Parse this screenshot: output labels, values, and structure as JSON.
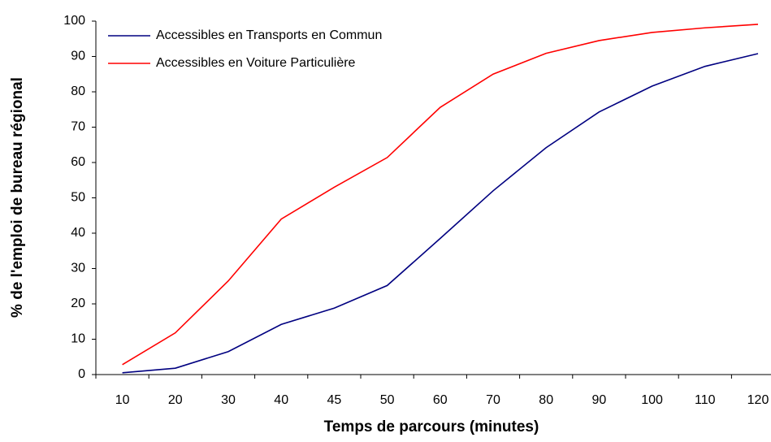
{
  "chart_data": {
    "type": "line",
    "x_label": "Temps de parcours (minutes)",
    "y_label": "% de l'emploi de bureau régional",
    "categories": [
      "10",
      "20",
      "30",
      "40",
      "45",
      "50",
      "60",
      "70",
      "80",
      "90",
      "100",
      "110",
      "120"
    ],
    "series": [
      {
        "name": "Accessibles en Transports en Commun",
        "color": "#000080",
        "values": [
          0.5,
          1.8,
          6.5,
          14.2,
          18.8,
          25.2,
          38.5,
          52,
          64.2,
          74.3,
          81.6,
          87.2,
          90.8
        ]
      },
      {
        "name": "Accessibles en Voiture Particulière",
        "color": "#ff0000",
        "values": [
          2.8,
          11.8,
          26.5,
          44,
          53,
          61.4,
          75.6,
          85,
          90.9,
          94.5,
          96.8,
          98.1,
          99.1
        ]
      }
    ],
    "ylim": [
      0,
      100
    ],
    "yticks": [
      0,
      10,
      20,
      30,
      40,
      50,
      60,
      70,
      80,
      90,
      100
    ],
    "grid": false,
    "legend": "upper left"
  }
}
